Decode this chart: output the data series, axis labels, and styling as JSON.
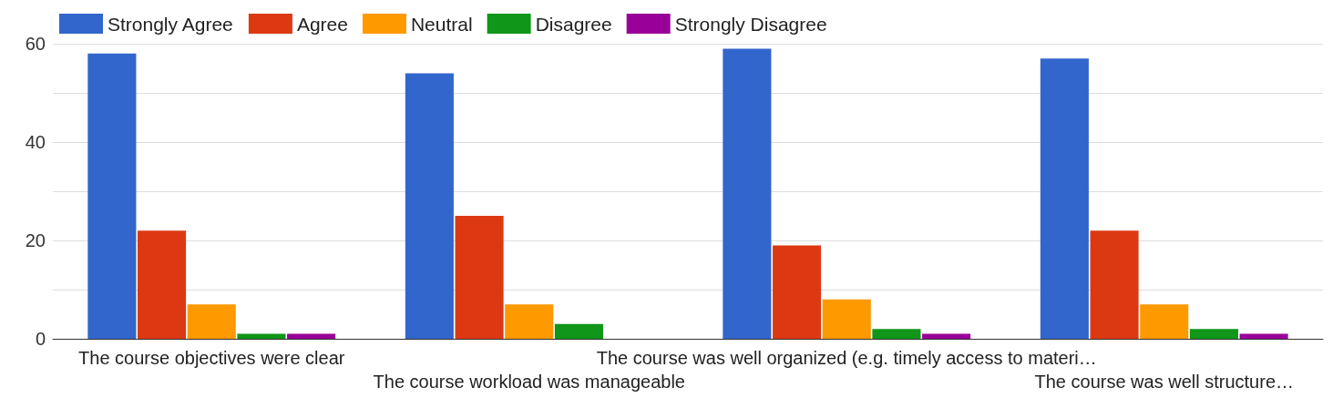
{
  "chart_data": {
    "type": "bar",
    "categories": [
      "The course objectives were clear",
      "The course workload was manageable",
      "The course was well organized (e.g. timely access to materi…",
      "The course was well structure…"
    ],
    "series": [
      {
        "name": "Strongly Agree",
        "color": "#3366cc",
        "values": [
          58,
          54,
          59,
          57
        ]
      },
      {
        "name": "Agree",
        "color": "#dc3912",
        "values": [
          22,
          25,
          19,
          22
        ]
      },
      {
        "name": "Neutral",
        "color": "#ff9900",
        "values": [
          7,
          7,
          8,
          7
        ]
      },
      {
        "name": "Disagree",
        "color": "#109618",
        "values": [
          1,
          3,
          2,
          2
        ]
      },
      {
        "name": "Strongly Disagree",
        "color": "#990099",
        "values": [
          1,
          0,
          1,
          1
        ]
      }
    ],
    "ylim": [
      0,
      60
    ],
    "yticks": [
      0,
      {
        "value": 10,
        "label": null
      },
      20,
      {
        "value": 30,
        "label": null
      },
      40,
      {
        "value": 50,
        "label": null
      },
      60
    ],
    "grid": "y",
    "legend": "top left"
  }
}
